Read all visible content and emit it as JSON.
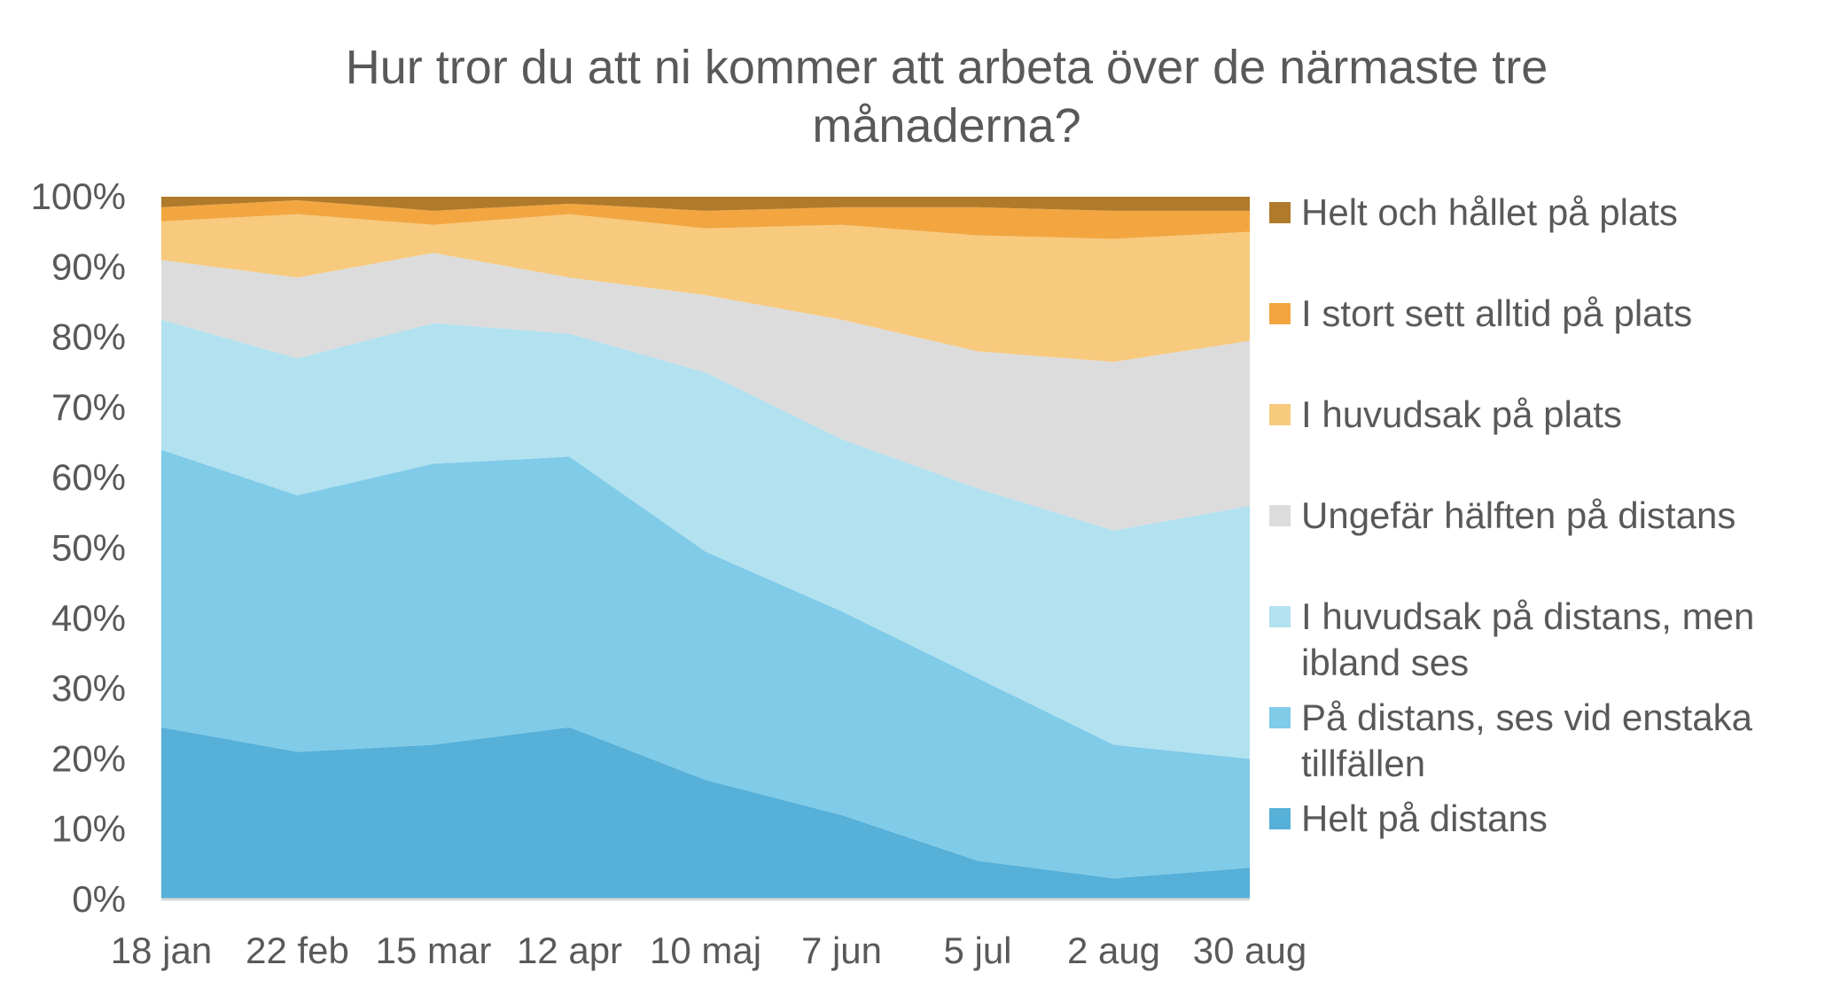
{
  "chart_data": {
    "type": "area",
    "stacked": true,
    "percent": true,
    "title_lines": [
      "Hur tror du att ni kommer att arbeta över de närmaste tre",
      "månaderna?"
    ],
    "categories": [
      "18 jan",
      "22 feb",
      "15 mar",
      "12 apr",
      "10 maj",
      "7 jun",
      "5 jul",
      "2 aug",
      "30 aug"
    ],
    "ylim": [
      0,
      100
    ],
    "yticks": [
      "0%",
      "10%",
      "20%",
      "30%",
      "40%",
      "50%",
      "60%",
      "70%",
      "80%",
      "90%",
      "100%"
    ],
    "legend_position": "right",
    "series": [
      {
        "name": "Helt på distans",
        "color": "#56B0D8",
        "values": [
          24.5,
          21,
          22,
          24.5,
          17,
          12,
          5.5,
          3,
          4.5
        ]
      },
      {
        "name": "På distans, ses vid enstaka tillfällen",
        "color": "#7FCBE8",
        "values": [
          39.5,
          36.5,
          40,
          38.5,
          32.5,
          29,
          26,
          19,
          15.5
        ]
      },
      {
        "name": "I huvudsak på distans, men ibland ses",
        "color": "#B2E1F0",
        "values": [
          18.5,
          19.5,
          20,
          17.5,
          25.5,
          24.5,
          27,
          30.5,
          36
        ]
      },
      {
        "name": "Ungefär hälften på distans",
        "color": "#DCDCDC",
        "values": [
          8.5,
          11.5,
          10,
          8,
          11,
          17,
          19.5,
          24,
          23.5
        ]
      },
      {
        "name": "I huvudsak på plats",
        "color": "#F7CA7E",
        "values": [
          5.5,
          9,
          4,
          9,
          9.5,
          13.5,
          16.5,
          17.5,
          15.5
        ]
      },
      {
        "name": "I stort sett alltid på plats",
        "color": "#F3A640",
        "values": [
          2,
          2,
          2,
          1.5,
          2.5,
          2.5,
          4,
          4,
          3
        ]
      },
      {
        "name": "Helt och hållet på plats",
        "color": "#B07A2B",
        "values": [
          1.5,
          0.5,
          2,
          1,
          2,
          1.5,
          1.5,
          2,
          2
        ]
      }
    ]
  }
}
